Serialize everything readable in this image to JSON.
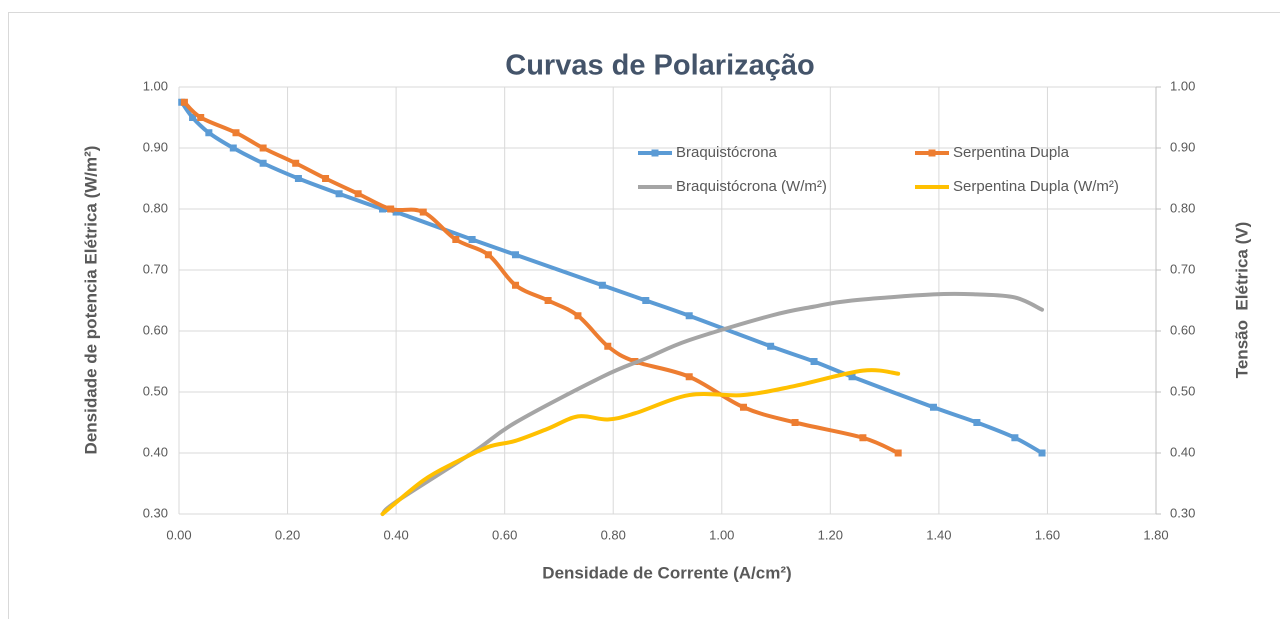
{
  "chart_data": {
    "type": "line",
    "title": "Curvas de Polarização",
    "xlabel": "Densidade de Corrente (A/cm²)",
    "ylabel": "Densidade de potencia Elétrica (W/m²)",
    "y2label": "Tensão  Elétrica (V)",
    "xlim": [
      0,
      1.8
    ],
    "xticks": [
      {
        "value": 0,
        "label": "0.00"
      },
      {
        "value": 0.2,
        "label": "0.20"
      },
      {
        "value": 0.4,
        "label": "0.40"
      },
      {
        "value": 0.6,
        "label": "0.60"
      },
      {
        "value": 0.8,
        "label": "0.80"
      },
      {
        "value": 1.0,
        "label": "1.00"
      },
      {
        "value": 1.2,
        "label": "1.20"
      },
      {
        "value": 1.4,
        "label": "1.40"
      },
      {
        "value": 1.6,
        "label": "1.60"
      },
      {
        "value": 1.8,
        "label": "1.80"
      }
    ],
    "ylim": [
      0.3,
      1.0
    ],
    "yticks": [
      {
        "value": 0.3,
        "label": "0.30"
      },
      {
        "value": 0.4,
        "label": "0.40"
      },
      {
        "value": 0.5,
        "label": "0.50"
      },
      {
        "value": 0.6,
        "label": "0.60"
      },
      {
        "value": 0.7,
        "label": "0.70"
      },
      {
        "value": 0.8,
        "label": "0.80"
      },
      {
        "value": 0.9,
        "label": "0.90"
      },
      {
        "value": 1.0,
        "label": "1.00"
      }
    ],
    "y2lim": [
      0.3,
      1.0
    ],
    "y2ticks": [
      {
        "value": 0.3,
        "label": "0.30"
      },
      {
        "value": 0.4,
        "label": "0.40"
      },
      {
        "value": 0.5,
        "label": "0.50"
      },
      {
        "value": 0.6,
        "label": "0.60"
      },
      {
        "value": 0.7,
        "label": "0.70"
      },
      {
        "value": 0.8,
        "label": "0.80"
      },
      {
        "value": 0.9,
        "label": "0.90"
      },
      {
        "value": 1.0,
        "label": "1.00"
      }
    ],
    "grid": true,
    "series": [
      {
        "name": "Braquistócrona",
        "color": "#5b9bd5",
        "axis": "y2",
        "marker": true,
        "x": [
          0.005,
          0.025,
          0.055,
          0.1,
          0.155,
          0.22,
          0.295,
          0.375,
          0.4,
          0.54,
          0.62,
          0.78,
          0.86,
          0.94,
          1.09,
          1.17,
          1.24,
          1.39,
          1.47,
          1.54,
          1.59
        ],
        "values": [
          0.975,
          0.95,
          0.925,
          0.9,
          0.875,
          0.85,
          0.825,
          0.8,
          0.795,
          0.75,
          0.725,
          0.675,
          0.65,
          0.625,
          0.575,
          0.55,
          0.525,
          0.475,
          0.45,
          0.425,
          0.4
        ]
      },
      {
        "name": "Serpentina Dupla",
        "color": "#ed7d31",
        "axis": "y2",
        "marker": true,
        "x": [
          0.01,
          0.04,
          0.105,
          0.155,
          0.215,
          0.27,
          0.33,
          0.39,
          0.45,
          0.51,
          0.57,
          0.62,
          0.68,
          0.735,
          0.79,
          0.84,
          0.94,
          1.04,
          1.135,
          1.26,
          1.325
        ],
        "values": [
          0.975,
          0.95,
          0.925,
          0.9,
          0.875,
          0.85,
          0.825,
          0.8,
          0.795,
          0.75,
          0.725,
          0.675,
          0.65,
          0.625,
          0.575,
          0.55,
          0.525,
          0.475,
          0.45,
          0.425,
          0.4
        ]
      },
      {
        "name": "Braquistócrona (W/m²)",
        "color": "#a5a5a5",
        "marker": false,
        "x": [
          0.375,
          0.4,
          0.54,
          0.62,
          0.78,
          0.86,
          0.94,
          1.09,
          1.17,
          1.24,
          1.39,
          1.47,
          1.54,
          1.59
        ],
        "values": [
          0.3,
          0.32,
          0.4,
          0.45,
          0.525,
          0.555,
          0.585,
          0.625,
          0.64,
          0.65,
          0.66,
          0.66,
          0.655,
          0.635
        ]
      },
      {
        "name": "Serpentina Dupla (W/m²)",
        "color": "#ffc000",
        "marker": false,
        "x": [
          0.375,
          0.45,
          0.51,
          0.57,
          0.62,
          0.68,
          0.735,
          0.79,
          0.84,
          0.94,
          1.04,
          1.135,
          1.26,
          1.325
        ],
        "values": [
          0.3,
          0.355,
          0.385,
          0.41,
          0.42,
          0.44,
          0.46,
          0.455,
          0.465,
          0.495,
          0.495,
          0.51,
          0.535,
          0.53
        ]
      }
    ]
  }
}
